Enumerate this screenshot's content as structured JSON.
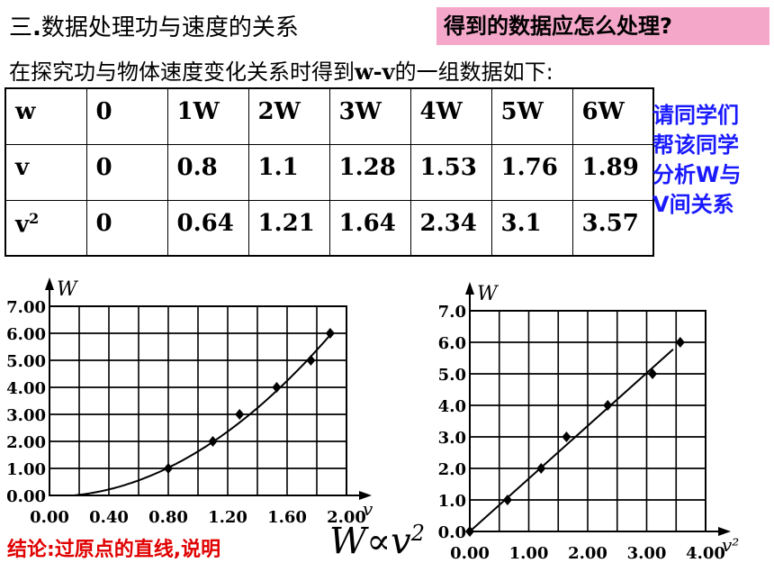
{
  "header": {
    "title_prefix": "三",
    "title_dot": ".",
    "title_text": "数据处理功与速度的关系",
    "badge": "得到的数据应怎么处理?"
  },
  "intro": {
    "before": "在探究功与物体速度变化关系时得到",
    "bold": "w-v",
    "after": "的一组数据如下:"
  },
  "table": {
    "rows": [
      {
        "label": "w",
        "cells": [
          "0",
          "1W",
          "2W",
          "3W",
          "4W",
          "5W",
          "6W"
        ]
      },
      {
        "label": "v",
        "cells": [
          "0",
          "0.8",
          "1.1",
          "1.28",
          "1.53",
          "1.76",
          "1.89"
        ]
      },
      {
        "label": "v",
        "label_sup": "2",
        "cells": [
          "0",
          "0.64",
          "1.21",
          "1.64",
          "2.34",
          "3.1",
          "3.57"
        ]
      }
    ]
  },
  "side_note": [
    "请同学们",
    "帮该同学",
    "分析W与",
    "V间关系"
  ],
  "chart_data": [
    {
      "type": "scatter",
      "title": "",
      "xlabel": "v",
      "ylabel": "W",
      "xlim": [
        0,
        2.0
      ],
      "ylim": [
        0,
        7.0
      ],
      "x_ticks": [
        "0.00",
        "0.40",
        "0.80",
        "1.20",
        "1.60",
        "2.00"
      ],
      "y_ticks": [
        "0.00",
        "1.00",
        "2.00",
        "3.00",
        "4.00",
        "5.00",
        "6.00",
        "7.00"
      ],
      "grid": "horizontal",
      "fit": "curve",
      "x": [
        0.8,
        1.1,
        1.28,
        1.53,
        1.76,
        1.89
      ],
      "y": [
        1.0,
        2.0,
        3.0,
        4.0,
        5.0,
        6.0
      ]
    },
    {
      "type": "scatter",
      "title": "",
      "xlabel": "v²",
      "ylabel": "W",
      "xlim": [
        0,
        4.0
      ],
      "ylim": [
        0,
        7.0
      ],
      "x_ticks": [
        "0.00",
        "1.00",
        "2.00",
        "3.00",
        "4.00"
      ],
      "y_ticks": [
        "0.0",
        "1.0",
        "2.0",
        "3.0",
        "4.0",
        "5.0",
        "6.0",
        "7.0"
      ],
      "grid": "horizontal",
      "fit": "line",
      "x": [
        0,
        0.64,
        1.21,
        1.64,
        2.34,
        3.1,
        3.57
      ],
      "y": [
        0,
        1.0,
        2.0,
        3.0,
        4.0,
        5.0,
        6.0
      ]
    }
  ],
  "conclusion": "结论:过原点的直线,说明",
  "formula": {
    "lhs": "W∝v",
    "sup": "2"
  }
}
